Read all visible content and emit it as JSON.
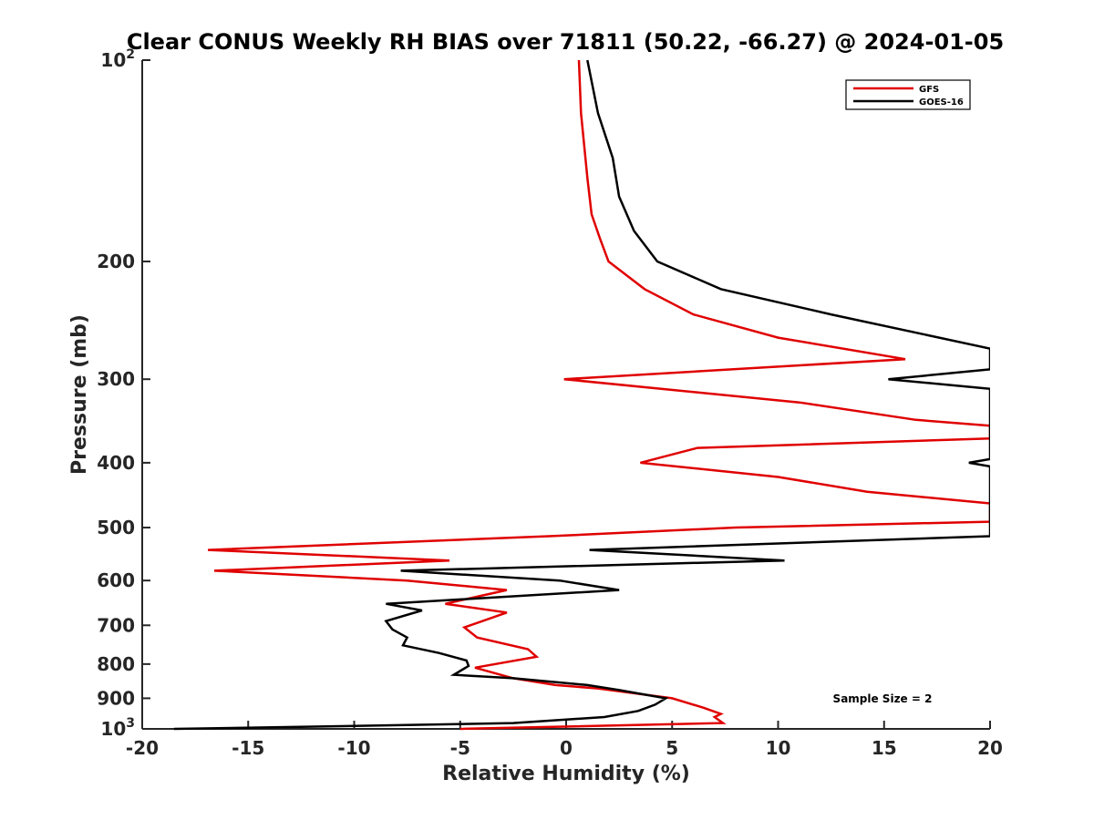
{
  "chart_data": {
    "type": "line",
    "title": "Clear CONUS Weekly RH BIAS over 71811 (50.22, -66.27) @ 2024-01-05",
    "xlabel": "Relative Humidity (%)",
    "ylabel": "Pressure (mb)",
    "xlim": [
      -20,
      20
    ],
    "ylim": [
      100,
      1000
    ],
    "y_scale": "log",
    "y_reversed": true,
    "grid": false,
    "legend_position": "top-right",
    "x_ticks": [
      "-20",
      "-15",
      "-10",
      "-5",
      "0",
      "5",
      "10",
      "15",
      "20"
    ],
    "y_ticks": [
      {
        "label": "10",
        "sup": "2"
      },
      {
        "label": "200",
        "sup": ""
      },
      {
        "label": "300",
        "sup": ""
      },
      {
        "label": "400",
        "sup": ""
      },
      {
        "label": "500",
        "sup": ""
      },
      {
        "label": "600",
        "sup": ""
      },
      {
        "label": "700",
        "sup": ""
      },
      {
        "label": "800",
        "sup": ""
      },
      {
        "label": "900",
        "sup": ""
      },
      {
        "label": "10",
        "sup": "3"
      }
    ],
    "annotation": "Sample Size = 2",
    "series": [
      {
        "name": "GFS",
        "color": "#e00000",
        "points": [
          [
            0.6,
            100
          ],
          [
            0.7,
            120
          ],
          [
            1.0,
            150
          ],
          [
            1.2,
            170
          ],
          [
            1.6,
            185
          ],
          [
            2.0,
            200
          ],
          [
            3.7,
            220
          ],
          [
            6.0,
            240
          ],
          [
            10.0,
            260
          ],
          [
            16.0,
            280
          ],
          [
            -0.1,
            300
          ],
          [
            11.0,
            325
          ],
          [
            16.5,
            345
          ],
          [
            20.0,
            352
          ],
          [
            20.0,
            368
          ],
          [
            6.2,
            380
          ],
          [
            3.5,
            400
          ],
          [
            10.0,
            420
          ],
          [
            14.2,
            442
          ],
          [
            20.0,
            460
          ],
          [
            20.0,
            490
          ],
          [
            8.0,
            500
          ],
          [
            -0.8,
            515
          ],
          [
            -16.9,
            540
          ],
          [
            -5.5,
            560
          ],
          [
            -16.6,
            580
          ],
          [
            -7.5,
            600
          ],
          [
            -2.8,
            620
          ],
          [
            -5.7,
            650
          ],
          [
            -2.8,
            670
          ],
          [
            -4.8,
            705
          ],
          [
            -4.2,
            730
          ],
          [
            -1.8,
            760
          ],
          [
            -1.4,
            780
          ],
          [
            -4.3,
            810
          ],
          [
            -2.5,
            840
          ],
          [
            -0.5,
            860
          ],
          [
            1.5,
            870
          ],
          [
            5.0,
            900
          ],
          [
            6.5,
            930
          ],
          [
            7.3,
            950
          ],
          [
            7.0,
            960
          ],
          [
            7.4,
            980
          ],
          [
            -5.0,
            1000
          ]
        ]
      },
      {
        "name": "GOES-16",
        "color": "#000000",
        "points": [
          [
            1.0,
            100
          ],
          [
            1.5,
            120
          ],
          [
            2.2,
            140
          ],
          [
            2.5,
            160
          ],
          [
            3.2,
            180
          ],
          [
            4.3,
            200
          ],
          [
            7.3,
            220
          ],
          [
            12.5,
            240
          ],
          [
            20.0,
            270
          ],
          [
            20.0,
            290
          ],
          [
            15.2,
            300
          ],
          [
            20.0,
            310
          ],
          [
            20.0,
            395
          ],
          [
            19.0,
            400
          ],
          [
            20.0,
            405
          ],
          [
            20.0,
            515
          ],
          [
            1.1,
            540
          ],
          [
            10.3,
            560
          ],
          [
            -7.8,
            580
          ],
          [
            -0.3,
            600
          ],
          [
            2.5,
            620
          ],
          [
            -8.5,
            650
          ],
          [
            -6.8,
            665
          ],
          [
            -8.5,
            690
          ],
          [
            -8.2,
            710
          ],
          [
            -7.5,
            730
          ],
          [
            -7.7,
            750
          ],
          [
            -6.0,
            770
          ],
          [
            -4.7,
            790
          ],
          [
            -4.6,
            805
          ],
          [
            -5.3,
            830
          ],
          [
            -2.5,
            840
          ],
          [
            1.0,
            860
          ],
          [
            2.5,
            875
          ],
          [
            4.7,
            900
          ],
          [
            4.2,
            920
          ],
          [
            3.4,
            940
          ],
          [
            1.8,
            960
          ],
          [
            -2.5,
            980
          ],
          [
            -10.0,
            990
          ],
          [
            -18.5,
            1000
          ]
        ]
      }
    ]
  }
}
